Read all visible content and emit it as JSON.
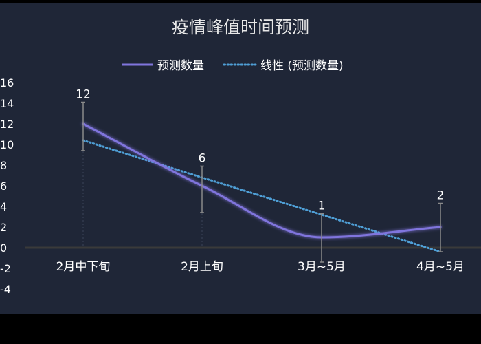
{
  "colors": {
    "background": "#1f2637",
    "outer": "#000000",
    "title": "#e8e8e8",
    "text": "#ffffff",
    "series": "#8075dd",
    "trend": "#4f9fd6",
    "zero_line": "#3a3a3a",
    "error_bar": "#8a8a8a"
  },
  "chart_data": {
    "type": "line",
    "title": "疫情峰值时间预测",
    "xlabel": "",
    "ylabel": "",
    "categories": [
      "2月中下旬",
      "2月上旬",
      "3月~5月",
      "4月~5月"
    ],
    "yticks": [
      "-4",
      "-2",
      "0",
      "2",
      "4",
      "6",
      "8",
      "10",
      "12",
      "14",
      "16"
    ],
    "ylim": [
      -4,
      16
    ],
    "grid": false,
    "legend_position": "top",
    "series": [
      {
        "name": "预测数量",
        "values": [
          12,
          6,
          1,
          2
        ],
        "data_labels": [
          "12",
          "6",
          "1",
          "2"
        ],
        "smooth": true,
        "error_bars": [
          [
            9.4,
            14.1
          ],
          [
            3.4,
            7.9
          ],
          [
            -1.4,
            3.3
          ],
          [
            -0.4,
            4.3
          ]
        ]
      },
      {
        "name": "线性 (预测数量)",
        "trendline_of": "预测数量",
        "style": "dotted",
        "values": [
          10.4,
          6.8,
          3.2,
          -0.4
        ]
      }
    ]
  }
}
